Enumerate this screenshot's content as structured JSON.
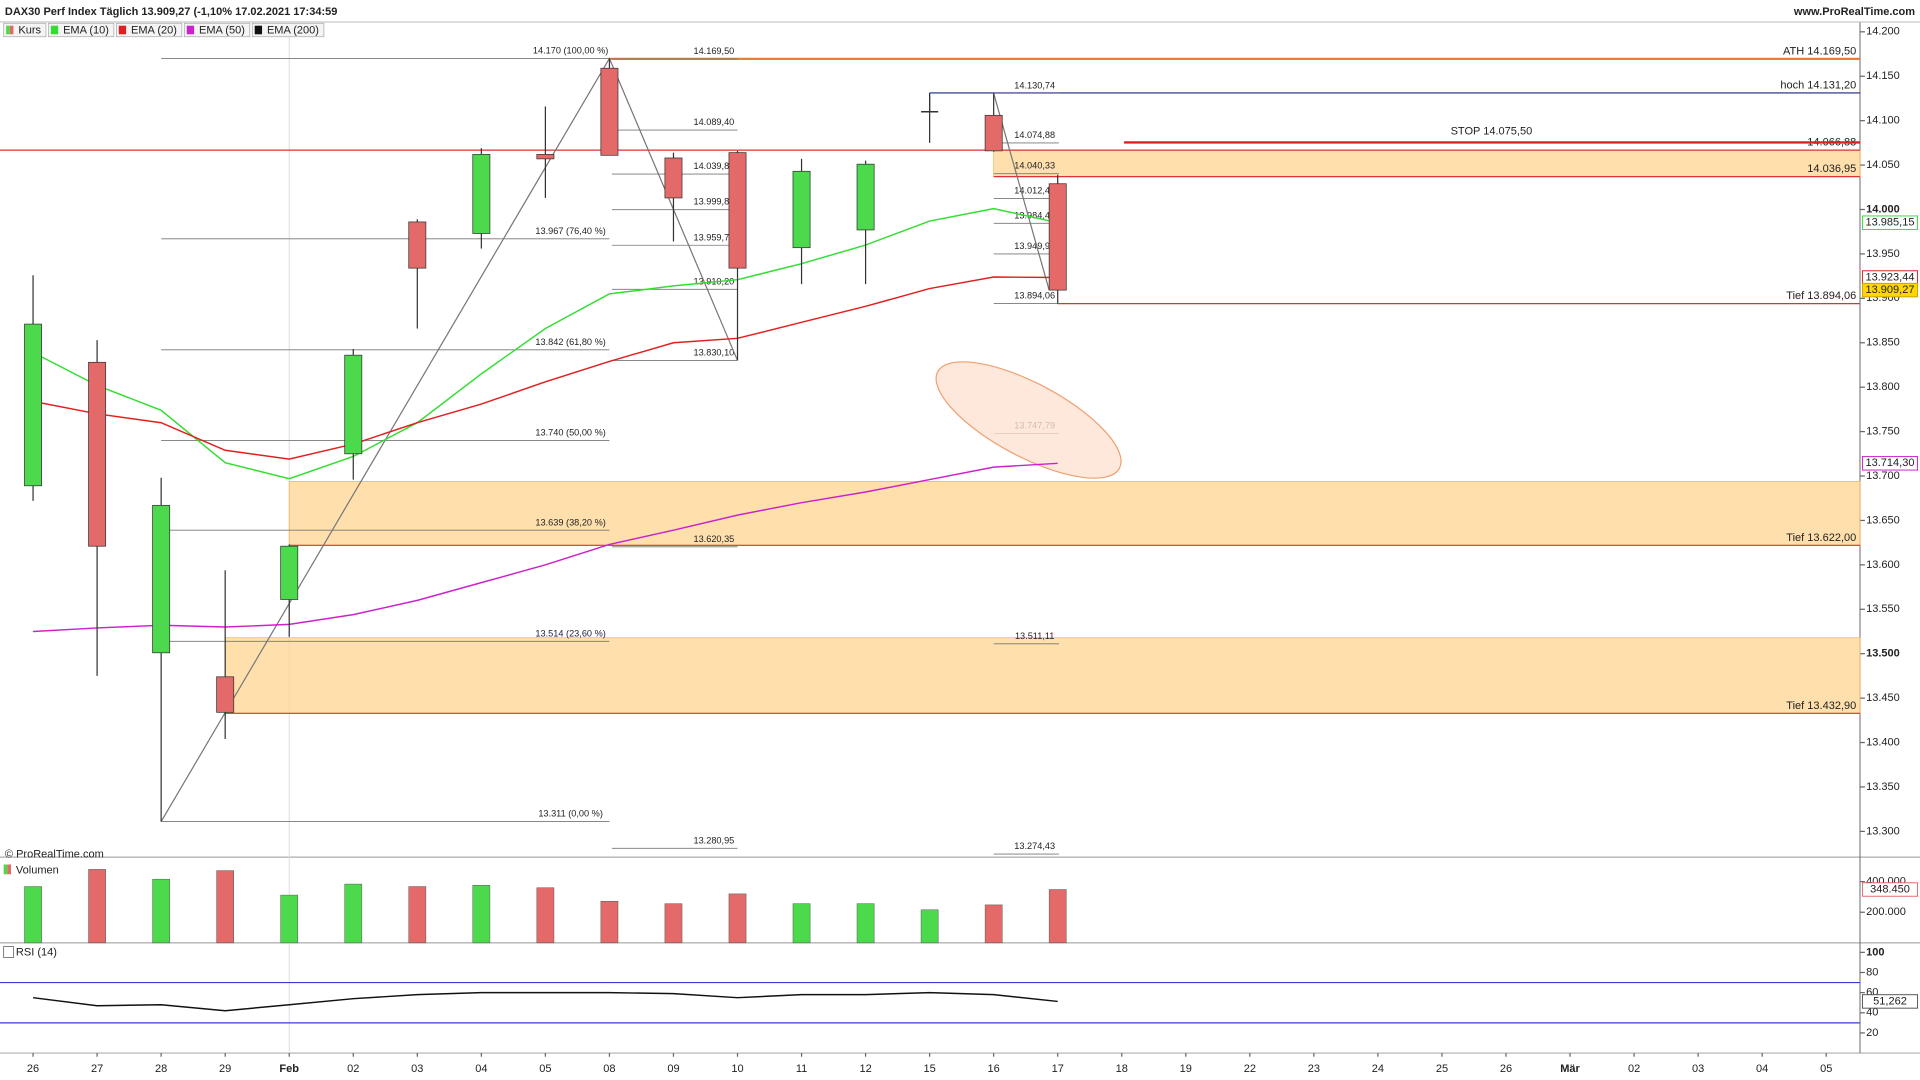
{
  "chart_data": {
    "type": "candlestick",
    "title": "DAX30 Perf Index Täglich 13.909,27 (-1,10% 17.02.2021 17:34:59",
    "source": "www.ProRealTime.com",
    "copyright": "© ProRealTime.com",
    "price_label": "Kurs",
    "categories": [
      "26",
      "27",
      "28",
      "29",
      "Feb",
      "02",
      "03",
      "04",
      "05",
      "08",
      "09",
      "10",
      "11",
      "12",
      "15",
      "16",
      "17",
      "18",
      "19",
      "22",
      "23",
      "24",
      "25",
      "26",
      "Mär",
      "02",
      "03",
      "04",
      "05"
    ],
    "open": [
      13689,
      13828,
      13501,
      13474,
      13561,
      13725,
      13986,
      13973,
      14062,
      14159,
      14058,
      14064,
      13957,
      13977,
      14110,
      14106,
      14029,
      null,
      null,
      null,
      null,
      null,
      null,
      null,
      null,
      null,
      null,
      null,
      null
    ],
    "high": [
      13926,
      13853,
      13698,
      13594,
      13623,
      13843,
      13989,
      14069,
      14116,
      14170,
      14064,
      14066,
      14057,
      14055,
      14128,
      14130.74,
      14039,
      null,
      null,
      null,
      null,
      null,
      null,
      null,
      null,
      null,
      null,
      null,
      null
    ],
    "low": [
      13672,
      13475,
      13311,
      13404,
      13519,
      13696,
      13866,
      13956,
      14013,
      14062,
      13964,
      13830.1,
      13916,
      13916,
      14075,
      14065,
      13894.06,
      null,
      null,
      null,
      null,
      null,
      null,
      null,
      null,
      null,
      null,
      null,
      null
    ],
    "close": [
      13871,
      13621,
      13667,
      13434,
      13621,
      13836,
      13934,
      14062,
      14057,
      14061,
      14013,
      13934,
      14043,
      14051,
      14110,
      14066,
      13909.27,
      null,
      null,
      null,
      null,
      null,
      null,
      null,
      null,
      null,
      null,
      null,
      null
    ],
    "value_labels": [
      null,
      null,
      null,
      null,
      null,
      null,
      null,
      null,
      null,
      null,
      null,
      null,
      null,
      null,
      null,
      null,
      "13.909,27",
      null,
      null,
      null,
      null,
      null,
      null,
      null,
      null,
      null,
      null,
      null,
      null
    ],
    "up_color": "#4cd94c",
    "down_color": "#e46a6a",
    "ylim": [
      13271,
      14211
    ],
    "yticks": [
      {
        "value": 14200,
        "label": "14.200"
      },
      {
        "value": 14150,
        "label": "14.150"
      },
      {
        "value": 14100,
        "label": "14.100"
      },
      {
        "value": 14050,
        "label": "14.050"
      },
      {
        "value": 14000,
        "label": "14.000",
        "bold": true
      },
      {
        "value": 13950,
        "label": "13.950"
      },
      {
        "value": 13900,
        "label": "13.900"
      },
      {
        "value": 13850,
        "label": "13.850"
      },
      {
        "value": 13800,
        "label": "13.800"
      },
      {
        "value": 13750,
        "label": "13.750"
      },
      {
        "value": 13700,
        "label": "13.700"
      },
      {
        "value": 13650,
        "label": "13.650"
      },
      {
        "value": 13600,
        "label": "13.600"
      },
      {
        "value": 13550,
        "label": "13.550"
      },
      {
        "value": 13500,
        "label": "13.500",
        "bold": true
      },
      {
        "value": 13450,
        "label": "13.450"
      },
      {
        "value": 13400,
        "label": "13.400"
      },
      {
        "value": 13350,
        "label": "13.350"
      },
      {
        "value": 13300,
        "label": "13.300"
      }
    ],
    "series": [
      {
        "name": "EMA (10)",
        "color": "#33dd33",
        "values": [
          13839,
          13802,
          13774,
          13715,
          13697,
          13722,
          13760,
          13815,
          13866,
          13905,
          13914,
          13921,
          13939,
          13960,
          13987,
          14001,
          13985.15,
          null,
          null,
          null,
          null,
          null,
          null,
          null,
          null,
          null,
          null,
          null,
          null
        ],
        "value_labels": [
          null,
          null,
          null,
          null,
          null,
          null,
          null,
          null,
          null,
          null,
          null,
          null,
          null,
          null,
          null,
          null,
          "13.985,15",
          null,
          null,
          null,
          null,
          null,
          null,
          null,
          null,
          null,
          null,
          null,
          null
        ]
      },
      {
        "name": "EMA (20)",
        "color": "#e02020",
        "values": [
          13784,
          13770,
          13760,
          13729,
          13719,
          13736,
          13760,
          13781,
          13806,
          13829,
          13850,
          13855,
          13873,
          13891,
          13911,
          13924,
          13923.44,
          null,
          null,
          null,
          null,
          null,
          null,
          null,
          null,
          null,
          null,
          null,
          null
        ],
        "value_labels": [
          null,
          null,
          null,
          null,
          null,
          null,
          null,
          null,
          null,
          null,
          null,
          null,
          null,
          null,
          null,
          null,
          "13.923,44",
          null,
          null,
          null,
          null,
          null,
          null,
          null,
          null,
          null,
          null,
          null,
          null
        ]
      },
      {
        "name": "EMA (50)",
        "color": "#cc22cc",
        "values": [
          13525,
          13529,
          13532,
          13530,
          13533,
          13544,
          13560,
          13580,
          13600,
          13623,
          13639,
          13656,
          13670,
          13682,
          13696,
          13710,
          13714.3,
          null,
          null,
          null,
          null,
          null,
          null,
          null,
          null,
          null,
          null,
          null,
          null
        ],
        "value_labels": [
          null,
          null,
          null,
          null,
          null,
          null,
          null,
          null,
          null,
          null,
          null,
          null,
          null,
          null,
          null,
          null,
          "13.714,30",
          null,
          null,
          null,
          null,
          null,
          null,
          null,
          null,
          null,
          null,
          null,
          null
        ]
      },
      {
        "name": "EMA (200)",
        "color": "#111111"
      }
    ],
    "levels": [
      {
        "label": "ATH 14.169,50",
        "value": 14169.5,
        "color": "#f07a3a"
      },
      {
        "label": "hoch 14.131,20",
        "value": 14131.2,
        "color": "#1a237e"
      },
      {
        "label": "14.066,88",
        "value": 14066.88,
        "color": "#e03030"
      },
      {
        "label": "14.036,95",
        "value": 14036.95,
        "color": "#e03030"
      },
      {
        "label": "Tief 13.894,06",
        "value": 13894.06,
        "color": "#e03030"
      },
      {
        "label": "Tief 13.622,00",
        "value": 13622,
        "color": "#e03030"
      },
      {
        "label": "Tief 13.432,90",
        "value": 13432.9,
        "color": "#e03030"
      }
    ],
    "stop": {
      "label": "STOP 14.075,50",
      "value": 14075.5,
      "color": "#e02020"
    },
    "zones": [
      [
        14066.88,
        14036.95
      ],
      [
        13694,
        13622
      ],
      [
        13518,
        13432.9
      ]
    ],
    "fib_left": [
      {
        "label": "14.170 (100,00 %)",
        "value": 14170
      },
      {
        "label": "13.967 (76,40 %)",
        "value": 13967
      },
      {
        "label": "13.842 (61,80 %)",
        "value": 13842
      },
      {
        "label": "13.740 (50,00 %)",
        "value": 13740
      },
      {
        "label": "13.639 (38,20 %)",
        "value": 13639
      },
      {
        "label": "13.514 (23,60 %)",
        "value": 13514
      },
      {
        "label": "13.311 (0,00 %)",
        "value": 13311
      }
    ],
    "fib_mid": [
      {
        "label": "14.169,50",
        "value": 14169.5
      },
      {
        "label": "14.089,40",
        "value": 14089.4
      },
      {
        "label": "14.039,86",
        "value": 14039.86
      },
      {
        "label": "13.999,80",
        "value": 13999.8
      },
      {
        "label": "13.959,76",
        "value": 13959.76
      },
      {
        "label": "13.910,20",
        "value": 13910.2
      },
      {
        "label": "13.830,10",
        "value": 13830.1
      },
      {
        "label": "13.620,35",
        "value": 13620.35
      },
      {
        "label": "13.280,95",
        "value": 13280.95
      }
    ],
    "fib_right": [
      {
        "label": "14.130,74",
        "value": 14130.74
      },
      {
        "label": "14.074,88",
        "value": 14074.88
      },
      {
        "label": "14.040,33",
        "value": 14040.33
      },
      {
        "label": "14.012,40",
        "value": 14012.4
      },
      {
        "label": "13.984,47",
        "value": 13984.47
      },
      {
        "label": "13.949,92",
        "value": 13949.92
      },
      {
        "label": "13.894,06",
        "value": 13894.06
      },
      {
        "label": "13.747,79",
        "value": 13747.79
      },
      {
        "label": "13.511,11",
        "value": 13511.11
      },
      {
        "label": "13.274,43",
        "value": 13274.43
      }
    ],
    "volume": {
      "title": "Volumen",
      "values": [
        368000,
        480000,
        416000,
        472000,
        312000,
        384000,
        368000,
        376000,
        360000,
        272000,
        256000,
        320000,
        256000,
        256000,
        216000,
        248000,
        348450,
        null,
        null,
        null,
        null,
        null,
        null,
        null,
        null,
        null,
        null,
        null,
        null
      ],
      "value_labels": [
        null,
        null,
        null,
        null,
        null,
        null,
        null,
        null,
        null,
        null,
        null,
        null,
        null,
        null,
        null,
        null,
        "348.450",
        null,
        null,
        null,
        null,
        null,
        null,
        null,
        null,
        null,
        null,
        null,
        null
      ],
      "ylim": [
        0,
        536000
      ],
      "yticks": [
        {
          "value": 400000,
          "label": "400.000"
        },
        {
          "value": 200000,
          "label": "200.000"
        }
      ]
    },
    "rsi": {
      "title": "RSI (14)",
      "color": "#111111",
      "values": [
        55,
        47,
        48,
        42,
        48,
        54,
        58,
        60,
        60,
        60,
        59,
        55,
        58,
        58,
        60,
        58,
        51.262,
        null,
        null,
        null,
        null,
        null,
        null,
        null,
        null,
        null,
        null,
        null,
        null
      ],
      "value_labels": [
        null,
        null,
        null,
        null,
        null,
        null,
        null,
        null,
        null,
        null,
        null,
        null,
        null,
        null,
        null,
        null,
        "51,262",
        null,
        null,
        null,
        null,
        null,
        null,
        null,
        null,
        null,
        null,
        null,
        null
      ],
      "ylim": [
        0,
        107
      ],
      "yticks": [
        100,
        80,
        60,
        40,
        20
      ],
      "bands": [
        70,
        30
      ],
      "band_color": "#3a3ae0"
    }
  }
}
